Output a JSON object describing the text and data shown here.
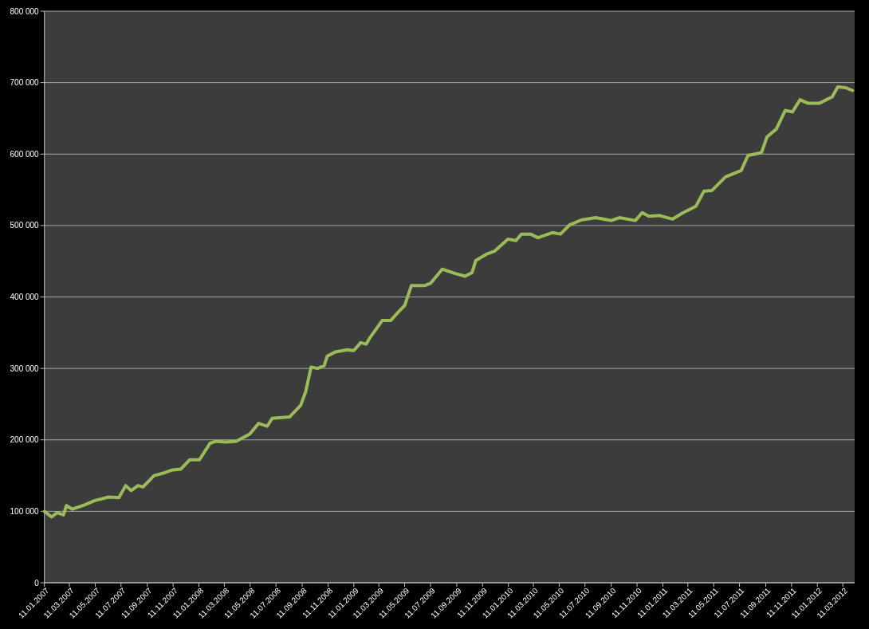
{
  "chart_data": {
    "type": "line",
    "grid": "y",
    "line_style": "solid",
    "marker": "none",
    "xlim": [
      "2007-01-11",
      "2012-04-08"
    ],
    "ylim": [
      0,
      800000
    ],
    "yticks": [
      {
        "value": 0,
        "label": "0"
      },
      {
        "value": 100000,
        "label": "100 000"
      },
      {
        "value": 200000,
        "label": "200 000"
      },
      {
        "value": 300000,
        "label": "300 000"
      },
      {
        "value": 400000,
        "label": "400 000"
      },
      {
        "value": 500000,
        "label": "500 000"
      },
      {
        "value": 600000,
        "label": "600 000"
      },
      {
        "value": 700000,
        "label": "700 000"
      },
      {
        "value": 800000,
        "label": "800 000"
      }
    ],
    "xticks": [
      {
        "value": "2007-01-11",
        "label": "11.01.2007"
      },
      {
        "value": "2007-03-11",
        "label": "11.03.2007"
      },
      {
        "value": "2007-05-11",
        "label": "11.05.2007"
      },
      {
        "value": "2007-07-11",
        "label": "11.07.2007"
      },
      {
        "value": "2007-09-11",
        "label": "11.09.2007"
      },
      {
        "value": "2007-11-11",
        "label": "11.11.2007"
      },
      {
        "value": "2008-01-11",
        "label": "11.01.2008"
      },
      {
        "value": "2008-03-11",
        "label": "11.03.2008"
      },
      {
        "value": "2008-05-11",
        "label": "11.05.2008"
      },
      {
        "value": "2008-07-11",
        "label": "11.07.2008"
      },
      {
        "value": "2008-09-11",
        "label": "11.09.2008"
      },
      {
        "value": "2008-11-11",
        "label": "11.11.2008"
      },
      {
        "value": "2009-01-11",
        "label": "11.01.2009"
      },
      {
        "value": "2009-03-11",
        "label": "11.03.2009"
      },
      {
        "value": "2009-05-11",
        "label": "11.05.2009"
      },
      {
        "value": "2009-07-11",
        "label": "11.07.2009"
      },
      {
        "value": "2009-09-11",
        "label": "11.09.2009"
      },
      {
        "value": "2009-11-11",
        "label": "11.11.2009"
      },
      {
        "value": "2010-01-11",
        "label": "11.01.2010"
      },
      {
        "value": "2010-03-11",
        "label": "11.03.2010"
      },
      {
        "value": "2010-05-11",
        "label": "11.05.2010"
      },
      {
        "value": "2010-07-11",
        "label": "11.07.2010"
      },
      {
        "value": "2010-09-11",
        "label": "11.09.2010"
      },
      {
        "value": "2010-11-11",
        "label": "11.11.2010"
      },
      {
        "value": "2011-01-11",
        "label": "11.01.2011"
      },
      {
        "value": "2011-03-11",
        "label": "11.03.2011"
      },
      {
        "value": "2011-05-11",
        "label": "11.05.2011"
      },
      {
        "value": "2011-07-11",
        "label": "11.07.2011"
      },
      {
        "value": "2011-09-11",
        "label": "11.09.2011"
      },
      {
        "value": "2011-11-11",
        "label": "11.11.2011"
      },
      {
        "value": "2012-01-11",
        "label": "11.01.2012"
      },
      {
        "value": "2012-03-11",
        "label": "11.03.2012"
      }
    ],
    "x": [
      "2007-01-11",
      "2007-01-28",
      "2007-02-10",
      "2007-02-25",
      "2007-03-04",
      "2007-03-18",
      "2007-04-16",
      "2007-05-10",
      "2007-06-12",
      "2007-07-06",
      "2007-07-22",
      "2007-08-04",
      "2007-08-20",
      "2007-09-01",
      "2007-09-27",
      "2007-10-22",
      "2007-11-10",
      "2007-11-29",
      "2007-12-20",
      "2008-01-12",
      "2008-02-06",
      "2008-02-19",
      "2008-03-14",
      "2008-04-08",
      "2008-05-10",
      "2008-05-31",
      "2008-06-20",
      "2008-07-02",
      "2008-08-12",
      "2008-09-07",
      "2008-09-19",
      "2008-10-02",
      "2008-10-17",
      "2008-11-02",
      "2008-11-09",
      "2008-11-28",
      "2008-12-26",
      "2009-01-11",
      "2009-01-27",
      "2009-02-09",
      "2009-02-18",
      "2009-03-19",
      "2009-04-08",
      "2009-04-26",
      "2009-05-11",
      "2009-05-27",
      "2009-06-28",
      "2009-07-11",
      "2009-08-08",
      "2009-09-06",
      "2009-10-01",
      "2009-10-17",
      "2009-10-26",
      "2009-11-21",
      "2009-12-09",
      "2010-01-10",
      "2010-01-29",
      "2010-02-11",
      "2010-03-04",
      "2010-03-22",
      "2010-04-25",
      "2010-05-14",
      "2010-06-05",
      "2010-07-04",
      "2010-08-05",
      "2010-09-11",
      "2010-09-30",
      "2010-11-07",
      "2010-11-23",
      "2010-12-09",
      "2011-01-03",
      "2011-02-03",
      "2011-02-28",
      "2011-03-30",
      "2011-04-18",
      "2011-05-07",
      "2011-06-08",
      "2011-07-15",
      "2011-07-31",
      "2011-09-01",
      "2011-09-14",
      "2011-10-06",
      "2011-10-27",
      "2011-11-13",
      "2011-12-01",
      "2011-12-20",
      "2012-01-15",
      "2012-02-15",
      "2012-02-28",
      "2012-03-17",
      "2012-04-03"
    ],
    "series": [
      {
        "color": "#9bbb59",
        "values": [
          100000,
          92000,
          98000,
          95000,
          108000,
          103000,
          109000,
          115000,
          120000,
          119000,
          136000,
          129000,
          136000,
          134000,
          150000,
          154000,
          158000,
          159000,
          172000,
          172000,
          195000,
          198000,
          197000,
          198000,
          208000,
          223000,
          219000,
          230000,
          232000,
          248000,
          267000,
          302000,
          300000,
          304000,
          317000,
          323000,
          326000,
          325000,
          336000,
          334000,
          343000,
          367000,
          367000,
          379000,
          388000,
          416000,
          416000,
          419000,
          439000,
          433000,
          429000,
          434000,
          451000,
          460000,
          464000,
          481000,
          479000,
          488000,
          488000,
          483000,
          490000,
          488000,
          501000,
          508000,
          511000,
          507000,
          511000,
          507000,
          518000,
          513000,
          514000,
          509000,
          518000,
          527000,
          548000,
          549000,
          568000,
          577000,
          598000,
          602000,
          624000,
          635000,
          661000,
          659000,
          676000,
          671000,
          671000,
          680000,
          694000,
          693000,
          689000
        ]
      }
    ]
  }
}
